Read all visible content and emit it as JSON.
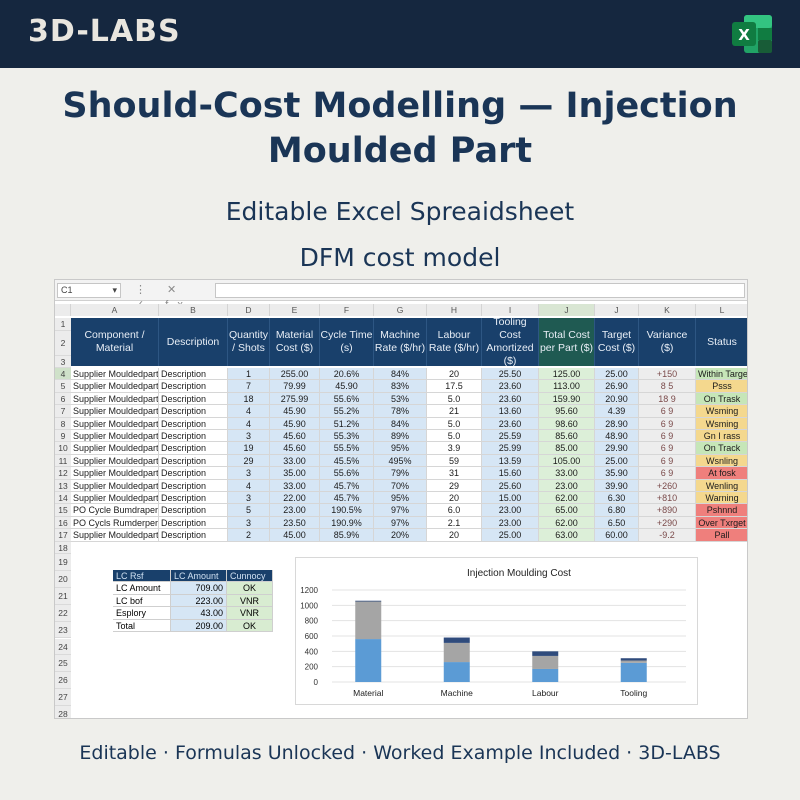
{
  "brand": "3D-LABS",
  "title_line1": "Should-Cost Modelling — Injection",
  "title_line2": "Moulded Part",
  "subtitle1": "Editable Excel Spreaidsheet",
  "subtitle2": "DFM cost model",
  "footer": "Editable · Formulas Unlocked · Worked Example Included · 3D-LABS",
  "excel_icon_letter": "X",
  "colors": {
    "header_bg": "#15273f",
    "table_header": "#19406b",
    "excel_green": "#1f7a45"
  },
  "formula_bar": {
    "name_box": "C1",
    "name_box_arrow": "▾",
    "icons": "⋮ ✕ ✓ fx"
  },
  "columns": [
    "A",
    "B",
    "D",
    "E",
    "F",
    "G",
    "H",
    "I",
    "J",
    "J",
    "K",
    "L"
  ],
  "rows": [
    "1",
    "2",
    "3",
    "4",
    "5",
    "6",
    "7",
    "8",
    "9",
    "10",
    "11",
    "12",
    "13",
    "14",
    "15",
    "16",
    "17",
    "18",
    "19",
    "20",
    "21",
    "22",
    "23",
    "24",
    "25",
    "26",
    "27",
    "28"
  ],
  "headers": [
    "Component / Material",
    "Description",
    "Quantity / Shots",
    "Material Cost ($)",
    "Cycle Time (s)",
    "Machine Rate ($/hr)",
    "Labour Rate ($/hr)",
    "Tooling Cost Amortized ($)",
    "Total Cost per Part ($)",
    "Target Cost ($)",
    "Variance ($)",
    "Status"
  ],
  "table_rows": [
    {
      "a": "Supplier Mouldedpart",
      "b": "Description",
      "d": "1",
      "e": "255.00",
      "f": "20.6%",
      "g": "84%",
      "h": "20",
      "i": "25.50",
      "j": "125.00",
      "j2": "25.00",
      "k": "+150",
      "status": "Within Target",
      "status_color": "#c6e6b8"
    },
    {
      "a": "Supplier Mouldedpart",
      "b": "Description",
      "d": "7",
      "e": "79.99",
      "f": "45.90",
      "g": "83%",
      "h": "17.5",
      "i": "23.60",
      "j": "113.00",
      "j2": "26.90",
      "k": "8 5",
      "status": "Psss",
      "status_color": "#f4d88e"
    },
    {
      "a": "Supplier Mouldedpart",
      "b": "Description",
      "d": "18",
      "e": "275.99",
      "f": "55.6%",
      "g": "53%",
      "h": "5.0",
      "i": "23.60",
      "j": "159.90",
      "j2": "20.90",
      "k": "18 9",
      "status": "On Trask",
      "status_color": "#c6e6b8"
    },
    {
      "a": "Supplier Mouldedpart",
      "b": "Description",
      "d": "4",
      "e": "45.90",
      "f": "55.2%",
      "g": "78%",
      "h": "21",
      "i": "13.60",
      "j": "95.60",
      "j2": "4.39",
      "k": "6 9",
      "status": "Wsming",
      "status_color": "#f4d88e"
    },
    {
      "a": "Supplier Mouldedpart",
      "b": "Description",
      "d": "4",
      "e": "45.90",
      "f": "51.2%",
      "g": "84%",
      "h": "5.0",
      "i": "23.60",
      "j": "98.60",
      "j2": "28.90",
      "k": "6 9",
      "status": "Wsming",
      "status_color": "#f4d88e"
    },
    {
      "a": "Supplier Mouldedpart",
      "b": "Description",
      "d": "3",
      "e": "45.60",
      "f": "55.3%",
      "g": "89%",
      "h": "5.0",
      "i": "25.59",
      "j": "85.60",
      "j2": "48.90",
      "k": "6 9",
      "status": "Gn I rass",
      "status_color": "#f4d88e"
    },
    {
      "a": "Supplier Mouldedpart",
      "b": "Description",
      "d": "19",
      "e": "45.60",
      "f": "55.5%",
      "g": "95%",
      "h": "3.9",
      "i": "25.99",
      "j": "85.00",
      "j2": "29.90",
      "k": "6 9",
      "status": "On Track",
      "status_color": "#c6e6b8"
    },
    {
      "a": "Supplier Mouldedpart",
      "b": "Description",
      "d": "29",
      "e": "33.00",
      "f": "45.5%",
      "g": "495%",
      "h": "59",
      "i": "13.59",
      "j": "105.00",
      "j2": "25.00",
      "k": "6 9",
      "status": "Wsnling",
      "status_color": "#f4d88e"
    },
    {
      "a": "Supplier Mouldedpart",
      "b": "Description",
      "d": "3",
      "e": "35.00",
      "f": "55.6%",
      "g": "79%",
      "h": "31",
      "i": "15.60",
      "j": "33.00",
      "j2": "35.90",
      "k": "6 9",
      "status": "At fosk",
      "status_color": "#ef7f7c"
    },
    {
      "a": "Supplier Mouldedpart",
      "b": "Description",
      "d": "4",
      "e": "33.00",
      "f": "45.7%",
      "g": "70%",
      "h": "29",
      "i": "25.60",
      "j": "23.00",
      "j2": "39.90",
      "k": "+260",
      "status": "Wenling",
      "status_color": "#f4d88e"
    },
    {
      "a": "Supplier Mouldedpart",
      "b": "Description",
      "d": "3",
      "e": "22.00",
      "f": "45.7%",
      "g": "95%",
      "h": "20",
      "i": "15.00",
      "j": "62.00",
      "j2": "6.30",
      "k": "+810",
      "status": "Warning",
      "status_color": "#f4d88e"
    },
    {
      "a": "PO Cycle Bumdraper",
      "b": "Description",
      "d": "5",
      "e": "23.00",
      "f": "190.5%",
      "g": "97%",
      "h": "6.0",
      "i": "23.00",
      "j": "65.00",
      "j2": "6.80",
      "k": "+890",
      "status": "Pshnnd",
      "status_color": "#ef7f7c"
    },
    {
      "a": "PO Cycls Rumderper",
      "b": "Description",
      "d": "3",
      "e": "23.50",
      "f": "190.9%",
      "g": "97%",
      "h": "2.1",
      "i": "23.00",
      "j": "62.00",
      "j2": "6.50",
      "k": "+290",
      "status": "Over Txrget",
      "status_color": "#ef7f7c"
    },
    {
      "a": "Supplier Mouldedpart",
      "b": "Description",
      "d": "2",
      "e": "45.00",
      "f": "85.9%",
      "g": "20%",
      "h": "20",
      "i": "25.00",
      "j": "63.00",
      "j2": "60.00",
      "k": "-9.2",
      "status": "Pall",
      "status_color": "#ef7f7c"
    }
  ],
  "mini_table": {
    "headers": [
      "LC Rsf",
      "LC Amount",
      "Cunnocy"
    ],
    "rows": [
      [
        "LC Amount",
        "709.00",
        "OK"
      ],
      [
        "LC bof",
        "223.00",
        "VNR"
      ],
      [
        "Esplory",
        "43.00",
        "VNR"
      ],
      [
        "Total",
        "209.00",
        "OK"
      ]
    ]
  },
  "chart_data": {
    "type": "bar",
    "title": "Injection Moulding Cost",
    "categories": [
      "Material",
      "Machine",
      "Labour",
      "Tooling"
    ],
    "series": [
      {
        "values": [
          560,
          260,
          170,
          250
        ],
        "color": "#5b9bd5"
      },
      {
        "values": [
          490,
          250,
          170,
          30
        ],
        "color": "#a5a5a5"
      },
      {
        "values": [
          10,
          70,
          60,
          30
        ],
        "color": "#2f4b7c"
      }
    ],
    "ylim": [
      0,
      1200
    ],
    "yticks": [
      0,
      200,
      400,
      600,
      800,
      1000,
      1200
    ],
    "grid": true,
    "legend": "none"
  }
}
